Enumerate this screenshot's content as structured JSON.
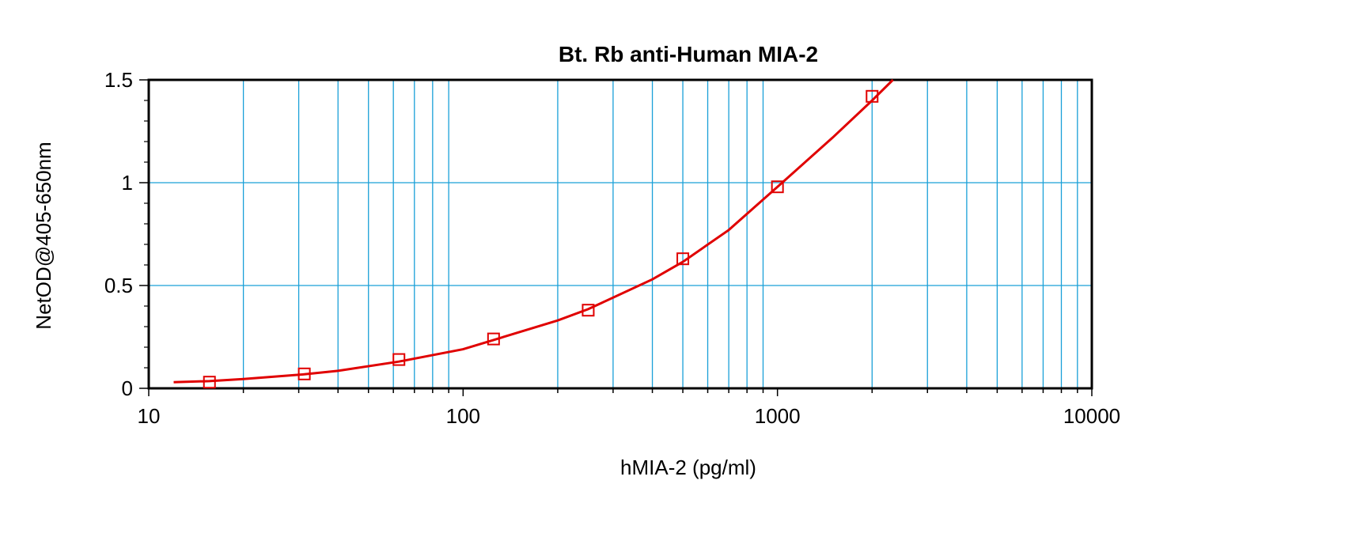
{
  "chart_data": {
    "type": "scatter",
    "title": "Bt. Rb anti-Human MIA-2",
    "xlabel": "hMIA-2 (pg/ml)",
    "ylabel": "NetOD@405-650nm",
    "x_scale": "log",
    "xlim": [
      10,
      10000
    ],
    "ylim": [
      0,
      1.5
    ],
    "x_ticks": [
      10,
      100,
      1000,
      10000
    ],
    "x_tick_labels": [
      "10",
      "100",
      "1000",
      "10000"
    ],
    "y_ticks": [
      0,
      0.5,
      1,
      1.5
    ],
    "y_tick_labels": [
      "0",
      "0.5",
      "1",
      "1.5"
    ],
    "grid": true,
    "colors": {
      "series": "#e00000",
      "grid": "#1aa0d8"
    },
    "series": [
      {
        "marker": "square",
        "points": [
          {
            "x": 15.6,
            "y": 0.03
          },
          {
            "x": 31.25,
            "y": 0.07
          },
          {
            "x": 62.5,
            "y": 0.14
          },
          {
            "x": 125,
            "y": 0.24
          },
          {
            "x": 250,
            "y": 0.38
          },
          {
            "x": 500,
            "y": 0.63
          },
          {
            "x": 1000,
            "y": 0.98
          },
          {
            "x": 2000,
            "y": 1.42
          }
        ],
        "fit_curve": [
          {
            "x": 12,
            "y": 0.03
          },
          {
            "x": 15.6,
            "y": 0.035
          },
          {
            "x": 20,
            "y": 0.045
          },
          {
            "x": 31.25,
            "y": 0.068
          },
          {
            "x": 40,
            "y": 0.085
          },
          {
            "x": 62.5,
            "y": 0.13
          },
          {
            "x": 100,
            "y": 0.19
          },
          {
            "x": 125,
            "y": 0.235
          },
          {
            "x": 200,
            "y": 0.33
          },
          {
            "x": 250,
            "y": 0.385
          },
          {
            "x": 400,
            "y": 0.53
          },
          {
            "x": 500,
            "y": 0.615
          },
          {
            "x": 700,
            "y": 0.77
          },
          {
            "x": 1000,
            "y": 0.98
          },
          {
            "x": 1500,
            "y": 1.22
          },
          {
            "x": 2000,
            "y": 1.4
          },
          {
            "x": 2330,
            "y": 1.5
          }
        ]
      }
    ]
  }
}
